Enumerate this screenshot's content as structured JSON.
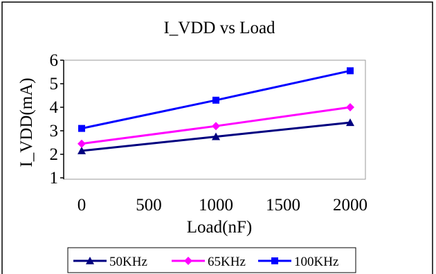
{
  "chart_data": {
    "type": "line",
    "title": "I_VDD vs Load",
    "xlabel": "Load(nF)",
    "ylabel": "I_VDD(mA)",
    "x": [
      0,
      1000,
      2000
    ],
    "xticks": [
      "0",
      "500",
      "1000",
      "1500",
      "2000"
    ],
    "xtick_values": [
      0,
      500,
      1000,
      1500,
      2000
    ],
    "yticks": [
      "1",
      "2",
      "3",
      "4",
      "5",
      "6"
    ],
    "ytick_values": [
      1,
      2,
      3,
      4,
      5,
      6
    ],
    "xlim": [
      0,
      2000
    ],
    "ylim": [
      1,
      6
    ],
    "grid": false,
    "legend_position": "bottom",
    "series": [
      {
        "name": "50KHz",
        "values": [
          2.15,
          2.75,
          3.35
        ],
        "color": "#000080",
        "marker": "triangle"
      },
      {
        "name": "65KHz",
        "values": [
          2.45,
          3.2,
          4.0
        ],
        "color": "#ff00ff",
        "marker": "diamond"
      },
      {
        "name": "100KHz",
        "values": [
          3.1,
          4.3,
          5.55
        ],
        "color": "#0000ff",
        "marker": "square"
      }
    ]
  }
}
